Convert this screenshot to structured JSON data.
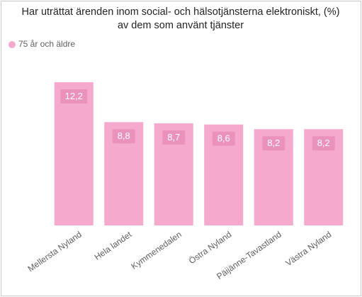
{
  "chart_data": {
    "type": "bar",
    "title": "Har uträttat ärenden inom social- och hälsotjänsterna elektroniskt, (%)",
    "subtitle": "av dem som använt tjänster",
    "categories": [
      "Mellersta Nyland",
      "Hela landet",
      "Kymmenedalen",
      "Östra Nyland",
      "Päijänne-Tavastland",
      "Västra Nyland"
    ],
    "series": [
      {
        "name": "75 år och äldre",
        "color": "#f5a9cd",
        "values": [
          12.2,
          8.8,
          8.7,
          8.6,
          8.2,
          8.2
        ],
        "value_labels": [
          "12,2",
          "8,8",
          "8,7",
          "8,6",
          "8,2",
          "8,2"
        ]
      }
    ]
  }
}
